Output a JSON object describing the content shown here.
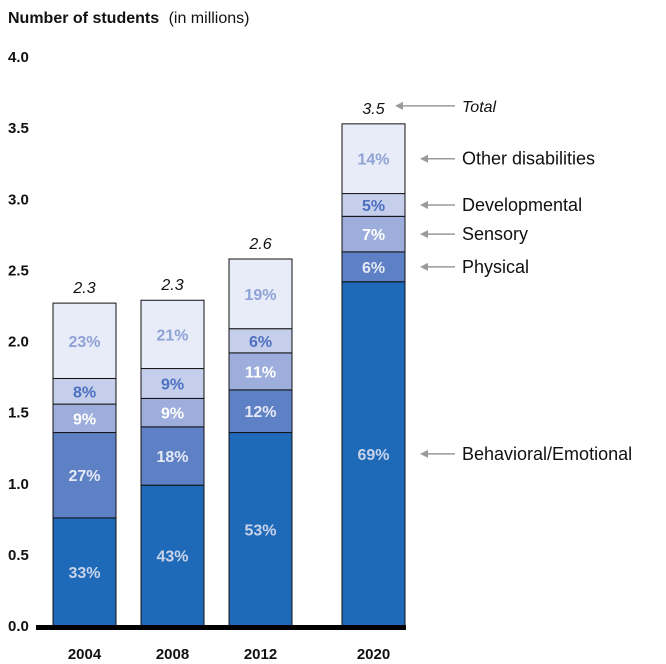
{
  "chart_data": {
    "type": "bar",
    "stacked": true,
    "title": "Number of students",
    "title_unit": "(in millions)",
    "categories": [
      "2004",
      "2008",
      "2012",
      "2020"
    ],
    "totals": [
      2.3,
      2.3,
      2.6,
      3.5
    ],
    "total_labels": [
      "2.3",
      "2.3",
      "2.6",
      "3.5"
    ],
    "total_legend_label": "Total",
    "ylim": [
      0,
      4.0
    ],
    "yticks": [
      "0.0",
      "0.5",
      "1.0",
      "1.5",
      "2.0",
      "2.5",
      "3.0",
      "3.5",
      "4.0"
    ],
    "grid": false,
    "legend_position": "right, aligned to 2020 bar segments",
    "series": [
      {
        "name": "Behavioral/Emotional",
        "color": "#1F6AB8",
        "label_color": "#C8D3EA",
        "values": [
          0.76,
          0.99,
          1.36,
          2.42
        ],
        "labels": [
          "33%",
          "43%",
          "53%",
          "69%"
        ]
      },
      {
        "name": "Physical",
        "color": "#5E80C4",
        "label_color": "#E4E9F5",
        "values": [
          0.6,
          0.41,
          0.3,
          0.21
        ],
        "labels": [
          "27%",
          "18%",
          "12%",
          "6%"
        ]
      },
      {
        "name": "Sensory",
        "color": "#9DAEDC",
        "label_color": "#FFFFFF",
        "values": [
          0.2,
          0.2,
          0.26,
          0.25
        ],
        "labels": [
          "9%",
          "9%",
          "11%",
          "7%"
        ]
      },
      {
        "name": "Developmental",
        "color": "#C5CFEC",
        "label_color": "#4E6FC0",
        "values": [
          0.18,
          0.21,
          0.17,
          0.16
        ],
        "labels": [
          "8%",
          "9%",
          "6%",
          "5%"
        ]
      },
      {
        "name": "Other disabilities",
        "color": "#E8ECF8",
        "label_color": "#8EA2D6",
        "values": [
          0.53,
          0.48,
          0.49,
          0.49
        ],
        "labels": [
          "23%",
          "21%",
          "19%",
          "14%"
        ]
      }
    ]
  }
}
